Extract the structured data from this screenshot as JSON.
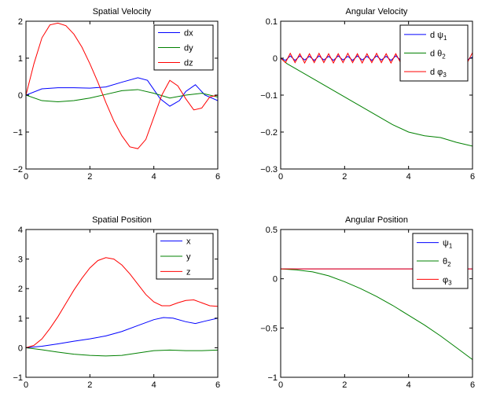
{
  "chart_data": [
    {
      "type": "line",
      "title": "Spatial Velocity",
      "xlim": [
        0,
        6
      ],
      "ylim": [
        -2,
        2
      ],
      "xticks": [
        0,
        2,
        4,
        6
      ],
      "yticks": [
        -2,
        -1,
        0,
        1,
        2
      ],
      "xtick_labels": [
        "0",
        "2",
        "4",
        "6"
      ],
      "ytick_labels": [
        "−2",
        "−1",
        "0",
        "1",
        "2"
      ],
      "legend": "top-right",
      "series": [
        {
          "name": "dx",
          "sub": "",
          "color": "#0000ff",
          "x": [
            0,
            0.5,
            1.0,
            1.5,
            2.0,
            2.5,
            3.0,
            3.5,
            3.8,
            4.0,
            4.2,
            4.5,
            4.8,
            5.0,
            5.3,
            5.6,
            6.0
          ],
          "y": [
            0,
            0.17,
            0.2,
            0.2,
            0.19,
            0.22,
            0.35,
            0.47,
            0.4,
            0.15,
            -0.1,
            -0.3,
            -0.15,
            0.1,
            0.28,
            0.0,
            -0.15
          ]
        },
        {
          "name": "dy",
          "sub": "",
          "color": "#008000",
          "x": [
            0,
            0.5,
            1.0,
            1.5,
            2.0,
            2.5,
            3.0,
            3.5,
            4.0,
            4.5,
            5.0,
            5.5,
            6.0
          ],
          "y": [
            0,
            -0.15,
            -0.18,
            -0.15,
            -0.08,
            0.02,
            0.12,
            0.15,
            0.05,
            -0.08,
            0.0,
            0.05,
            -0.05
          ]
        },
        {
          "name": "dz",
          "sub": "",
          "color": "#ff0000",
          "x": [
            0,
            0.25,
            0.5,
            0.75,
            1.0,
            1.25,
            1.5,
            1.75,
            2.0,
            2.25,
            2.5,
            2.75,
            3.0,
            3.25,
            3.5,
            3.75,
            4.0,
            4.25,
            4.5,
            4.75,
            5.0,
            5.25,
            5.5,
            5.75,
            6.0
          ],
          "y": [
            0,
            0.85,
            1.55,
            1.9,
            1.95,
            1.88,
            1.65,
            1.3,
            0.85,
            0.35,
            -0.2,
            -0.7,
            -1.1,
            -1.4,
            -1.45,
            -1.2,
            -0.6,
            0.0,
            0.4,
            0.25,
            -0.1,
            -0.4,
            -0.35,
            -0.05,
            0.0
          ]
        }
      ]
    },
    {
      "type": "line",
      "title": "Angular Velocity",
      "xlim": [
        0,
        6
      ],
      "ylim": [
        -0.3,
        0.1
      ],
      "xticks": [
        0,
        2,
        4,
        6
      ],
      "yticks": [
        -0.3,
        -0.2,
        -0.1,
        0,
        0.1
      ],
      "xtick_labels": [
        "0",
        "2",
        "4",
        "6"
      ],
      "ytick_labels": [
        "−0.3",
        "−0.2",
        "−0.1",
        "0",
        "0.1"
      ],
      "legend": "top-right",
      "series": [
        {
          "name": "d ψ",
          "sub": "1",
          "color": "#0000ff",
          "x": [
            0,
            0.15,
            0.3,
            0.45,
            0.6,
            0.75,
            0.9,
            1.05,
            1.2,
            1.35,
            1.5,
            1.65,
            1.8,
            1.95,
            2.1,
            2.25,
            2.4,
            2.55,
            2.7,
            2.85,
            3.0,
            3.15,
            3.3,
            3.45,
            3.6,
            3.75,
            3.9,
            4.05,
            4.2,
            4.35,
            4.5,
            4.65,
            4.8,
            4.95,
            5.1,
            5.25,
            5.4,
            5.55,
            5.7,
            5.85,
            6.0
          ],
          "y": [
            0,
            -0.006,
            0.006,
            -0.006,
            0.006,
            -0.005,
            0.005,
            -0.006,
            0.006,
            -0.005,
            0.005,
            -0.006,
            0.006,
            -0.005,
            0.005,
            -0.006,
            0.006,
            -0.005,
            0.005,
            -0.006,
            0.006,
            -0.005,
            0.005,
            -0.006,
            0.006,
            -0.005,
            0.005,
            -0.006,
            0.006,
            -0.005,
            0.005,
            -0.006,
            0.006,
            -0.005,
            0.005,
            -0.006,
            0.006,
            -0.005,
            0.005,
            -0.004,
            0.003
          ]
        },
        {
          "name": "d θ",
          "sub": "2",
          "color": "#008000",
          "x": [
            0,
            0.2,
            0.5,
            1.0,
            1.5,
            2.0,
            2.5,
            3.0,
            3.5,
            4.0,
            4.5,
            5.0,
            5.5,
            6.0
          ],
          "y": [
            0,
            -0.015,
            -0.03,
            -0.055,
            -0.08,
            -0.105,
            -0.13,
            -0.155,
            -0.18,
            -0.2,
            -0.21,
            -0.215,
            -0.228,
            -0.238
          ]
        },
        {
          "name": "d φ",
          "sub": "3",
          "color": "#ff0000",
          "x": [
            0,
            0.15,
            0.3,
            0.45,
            0.6,
            0.75,
            0.9,
            1.05,
            1.2,
            1.35,
            1.5,
            1.65,
            1.8,
            1.95,
            2.1,
            2.25,
            2.4,
            2.55,
            2.7,
            2.85,
            3.0,
            3.15,
            3.3,
            3.45,
            3.6,
            3.75,
            3.9,
            4.05,
            4.2,
            4.35,
            4.5,
            4.65,
            4.8,
            4.95,
            5.1,
            5.25,
            5.4,
            5.55,
            5.7,
            5.85,
            6.0
          ],
          "y": [
            0,
            -0.012,
            0.013,
            -0.012,
            0.012,
            -0.013,
            0.012,
            -0.012,
            0.013,
            -0.012,
            0.012,
            -0.013,
            0.012,
            -0.012,
            0.013,
            -0.012,
            0.012,
            -0.013,
            0.012,
            -0.012,
            0.013,
            -0.012,
            0.012,
            -0.013,
            0.012,
            -0.012,
            0.013,
            -0.012,
            0.012,
            -0.013,
            0.012,
            -0.012,
            0.013,
            -0.012,
            0.012,
            -0.013,
            0.012,
            -0.012,
            0.013,
            -0.01,
            0.015
          ]
        }
      ]
    },
    {
      "type": "line",
      "title": "Spatial Position",
      "xlim": [
        0,
        6
      ],
      "ylim": [
        -1,
        4
      ],
      "xticks": [
        0,
        2,
        4,
        6
      ],
      "yticks": [
        -1,
        0,
        1,
        2,
        3,
        4
      ],
      "xtick_labels": [
        "0",
        "2",
        "4",
        "6"
      ],
      "ytick_labels": [
        "−1",
        "0",
        "1",
        "2",
        "3",
        "4"
      ],
      "legend": "top-right",
      "series": [
        {
          "name": "x",
          "sub": "",
          "color": "#0000ff",
          "x": [
            0,
            0.5,
            1.0,
            1.5,
            2.0,
            2.5,
            3.0,
            3.5,
            4.0,
            4.3,
            4.6,
            5.0,
            5.3,
            5.6,
            6.0
          ],
          "y": [
            0,
            0.05,
            0.13,
            0.22,
            0.3,
            0.4,
            0.55,
            0.75,
            0.95,
            1.02,
            1.0,
            0.88,
            0.82,
            0.9,
            1.0
          ]
        },
        {
          "name": "y",
          "sub": "",
          "color": "#008000",
          "x": [
            0,
            0.5,
            1.0,
            1.5,
            2.0,
            2.5,
            3.0,
            3.5,
            4.0,
            4.5,
            5.0,
            5.5,
            6.0
          ],
          "y": [
            0,
            -0.07,
            -0.15,
            -0.22,
            -0.26,
            -0.28,
            -0.26,
            -0.18,
            -0.1,
            -0.08,
            -0.1,
            -0.1,
            -0.08
          ]
        },
        {
          "name": "z",
          "sub": "",
          "color": "#ff0000",
          "x": [
            0,
            0.25,
            0.5,
            0.75,
            1.0,
            1.25,
            1.5,
            1.75,
            2.0,
            2.25,
            2.5,
            2.75,
            3.0,
            3.25,
            3.5,
            3.75,
            4.0,
            4.25,
            4.5,
            4.75,
            5.0,
            5.25,
            5.5,
            5.75,
            6.0
          ],
          "y": [
            0,
            0.08,
            0.3,
            0.65,
            1.05,
            1.5,
            1.95,
            2.35,
            2.7,
            2.95,
            3.05,
            3.0,
            2.8,
            2.5,
            2.15,
            1.8,
            1.55,
            1.42,
            1.42,
            1.52,
            1.6,
            1.62,
            1.52,
            1.42,
            1.4
          ]
        }
      ]
    },
    {
      "type": "line",
      "title": "Angular Position",
      "xlim": [
        0,
        6
      ],
      "ylim": [
        -1,
        0.5
      ],
      "xticks": [
        0,
        2,
        4,
        6
      ],
      "yticks": [
        -1,
        -0.5,
        0,
        0.5
      ],
      "xtick_labels": [
        "0",
        "2",
        "4",
        "6"
      ],
      "ytick_labels": [
        "−1",
        "−0.5",
        "0",
        "0.5"
      ],
      "legend": "top-right",
      "series": [
        {
          "name": "ψ",
          "sub": "1",
          "color": "#0000ff",
          "x": [
            0,
            1,
            2,
            3,
            4,
            5,
            6
          ],
          "y": [
            0.1,
            0.1,
            0.1,
            0.1,
            0.1,
            0.1,
            0.1
          ]
        },
        {
          "name": "θ",
          "sub": "2",
          "color": "#008000",
          "x": [
            0,
            0.5,
            1.0,
            1.5,
            2.0,
            2.5,
            3.0,
            3.5,
            4.0,
            4.5,
            5.0,
            5.5,
            6.0
          ],
          "y": [
            0.1,
            0.09,
            0.07,
            0.03,
            -0.03,
            -0.1,
            -0.18,
            -0.27,
            -0.37,
            -0.47,
            -0.58,
            -0.7,
            -0.82
          ]
        },
        {
          "name": "φ",
          "sub": "3",
          "color": "#ff0000",
          "x": [
            0,
            1,
            2,
            3,
            4,
            5,
            6
          ],
          "y": [
            0.1,
            0.1,
            0.1,
            0.1,
            0.1,
            0.1,
            0.1
          ]
        }
      ]
    }
  ]
}
